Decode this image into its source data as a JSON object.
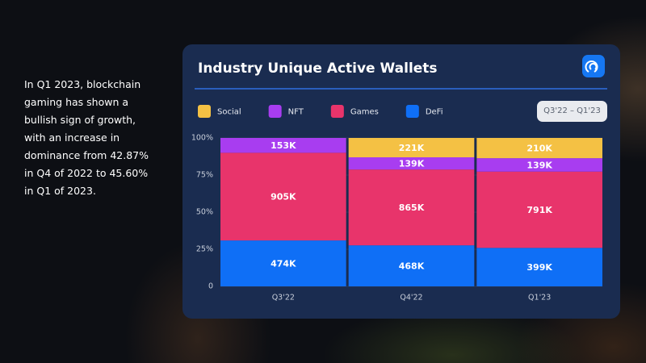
{
  "intro": "In Q1 2023, blockchain gaming has shown a bullish sign of growth, with an increase in dominance from 42.87% in Q4 of 2022 to 45.60% in Q1 of 2023.",
  "range_button": "Q3'22 – Q1'23",
  "chart_data": {
    "type": "stacked_bar",
    "stacking": "percent",
    "title": "Industry Unique Active Wallets",
    "categories": [
      "Q3'22",
      "Q4'22",
      "Q1'23"
    ],
    "series": [
      {
        "name": "Social",
        "color": "#f4c144",
        "values": [
          null,
          221000,
          210000
        ],
        "value_labels": [
          null,
          "221K",
          "210K"
        ]
      },
      {
        "name": "NFT",
        "color": "#a83df0",
        "values": [
          153000,
          139000,
          139000
        ],
        "value_labels": [
          "153K",
          "139K",
          "139K"
        ]
      },
      {
        "name": "Games",
        "color": "#e8346b",
        "values": [
          905000,
          865000,
          791000
        ],
        "value_labels": [
          "905K",
          "865K",
          "791K"
        ]
      },
      {
        "name": "DeFi",
        "color": "#0f6ff6",
        "values": [
          474000,
          468000,
          399000
        ],
        "value_labels": [
          "474K",
          "468K",
          "399K"
        ]
      }
    ],
    "ylim": [
      0,
      100
    ],
    "yticks": [
      0,
      {
        "value": 25,
        "label": "25%"
      },
      {
        "value": 50,
        "label": "50%"
      },
      {
        "value": 75,
        "label": "75%"
      },
      {
        "value": 100,
        "label": "100%"
      }
    ],
    "grid": true
  }
}
